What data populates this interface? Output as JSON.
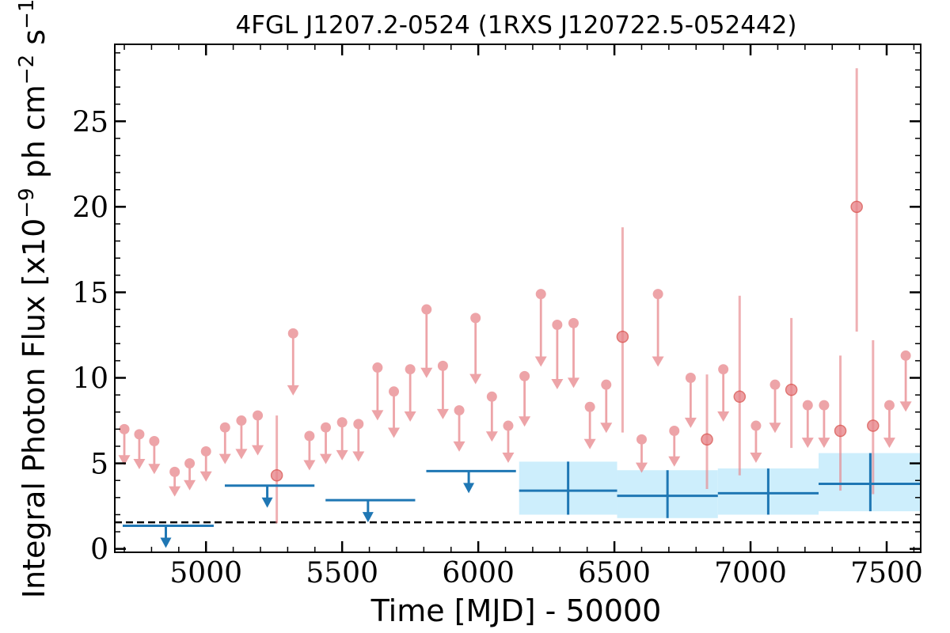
{
  "chart_data": {
    "type": "scatter",
    "title": "4FGL J1207.2-0524 (1RXS J120722.5-052442)",
    "xlabel": "Time [MJD] - 50000",
    "ylabel": "Integral Photon Flux [x10^-9 ph cm^-2 s^-1]",
    "xlim": [
      4665,
      7625
    ],
    "ylim": [
      -0.2,
      29.5
    ],
    "x_ticks": [
      5000,
      5500,
      6000,
      6500,
      7000,
      7500
    ],
    "y_ticks": [
      0,
      5,
      10,
      15,
      20,
      25
    ],
    "grid": false,
    "reference_line": {
      "y": 1.55,
      "style": "dashed",
      "color": "#000000"
    },
    "colors": {
      "fine_bins": "#e8868c",
      "coarse_bins": "#1f77b4",
      "band_fill": "#cdeefc"
    },
    "series": [
      {
        "color": "#e8868c",
        "upper_limits": [
          {
            "x": 4700,
            "y": 7.0
          },
          {
            "x": 4755,
            "y": 6.7
          },
          {
            "x": 4810,
            "y": 6.3
          },
          {
            "x": 4885,
            "y": 4.5
          },
          {
            "x": 4940,
            "y": 5.0
          },
          {
            "x": 5000,
            "y": 5.7
          },
          {
            "x": 5070,
            "y": 7.1
          },
          {
            "x": 5130,
            "y": 7.5
          },
          {
            "x": 5190,
            "y": 7.8
          },
          {
            "x": 5320,
            "y": 12.6
          },
          {
            "x": 5380,
            "y": 6.6
          },
          {
            "x": 5440,
            "y": 7.1
          },
          {
            "x": 5500,
            "y": 7.4
          },
          {
            "x": 5560,
            "y": 7.3
          },
          {
            "x": 5630,
            "y": 10.6
          },
          {
            "x": 5690,
            "y": 9.2
          },
          {
            "x": 5750,
            "y": 10.5
          },
          {
            "x": 5810,
            "y": 14.0
          },
          {
            "x": 5870,
            "y": 10.7
          },
          {
            "x": 5930,
            "y": 8.1
          },
          {
            "x": 5990,
            "y": 13.5
          },
          {
            "x": 6050,
            "y": 8.9
          },
          {
            "x": 6110,
            "y": 7.2
          },
          {
            "x": 6170,
            "y": 10.1
          },
          {
            "x": 6230,
            "y": 14.9
          },
          {
            "x": 6290,
            "y": 13.1
          },
          {
            "x": 6350,
            "y": 13.2
          },
          {
            "x": 6410,
            "y": 8.3
          },
          {
            "x": 6470,
            "y": 9.6
          },
          {
            "x": 6600,
            "y": 6.4
          },
          {
            "x": 6660,
            "y": 14.9
          },
          {
            "x": 6720,
            "y": 6.9
          },
          {
            "x": 6780,
            "y": 10.0
          },
          {
            "x": 6900,
            "y": 10.5
          },
          {
            "x": 7020,
            "y": 7.2
          },
          {
            "x": 7090,
            "y": 9.6
          },
          {
            "x": 7210,
            "y": 8.4
          },
          {
            "x": 7270,
            "y": 8.4
          },
          {
            "x": 7510,
            "y": 8.4
          },
          {
            "x": 7570,
            "y": 11.3
          }
        ],
        "detections": [
          {
            "x": 5260,
            "y": 4.3,
            "low": 1.5,
            "high": 7.8
          },
          {
            "x": 6530,
            "y": 12.4,
            "low": 6.8,
            "high": 18.8
          },
          {
            "x": 6840,
            "y": 6.4,
            "low": 3.5,
            "high": 10.2
          },
          {
            "x": 6960,
            "y": 8.9,
            "low": 4.3,
            "high": 14.8
          },
          {
            "x": 7150,
            "y": 9.3,
            "low": 5.9,
            "high": 13.5
          },
          {
            "x": 7330,
            "y": 6.9,
            "low": 3.4,
            "high": 11.3
          },
          {
            "x": 7390,
            "y": 20.0,
            "low": 12.7,
            "high": 28.1
          },
          {
            "x": 7450,
            "y": 7.2,
            "low": 3.2,
            "high": 12.2
          }
        ]
      },
      {
        "color": "#1f77b4",
        "upper_limits": [
          {
            "x0": 4665,
            "x1": 5040,
            "y": 1.35
          },
          {
            "x0": 5040,
            "x1": 5410,
            "y": 3.7
          },
          {
            "x0": 5410,
            "x1": 5780,
            "y": 2.85
          },
          {
            "x0": 5780,
            "x1": 6150,
            "y": 4.55
          }
        ],
        "detections": [
          {
            "x0": 6150,
            "x1": 6510,
            "x": 6330,
            "y": 3.4,
            "low": 2.0,
            "high": 5.1,
            "band_low": 2.0,
            "band_high": 5.1
          },
          {
            "x0": 6510,
            "x1": 6880,
            "x": 6695,
            "y": 3.1,
            "low": 1.8,
            "high": 4.6,
            "band_low": 1.8,
            "band_high": 4.6
          },
          {
            "x0": 6880,
            "x1": 7250,
            "x": 7065,
            "y": 3.25,
            "low": 2.0,
            "high": 4.7,
            "band_low": 2.0,
            "band_high": 4.7
          },
          {
            "x0": 7250,
            "x1": 7625,
            "x": 7440,
            "y": 3.8,
            "low": 2.2,
            "high": 5.6,
            "band_low": 2.2,
            "band_high": 5.6
          }
        ]
      }
    ]
  }
}
